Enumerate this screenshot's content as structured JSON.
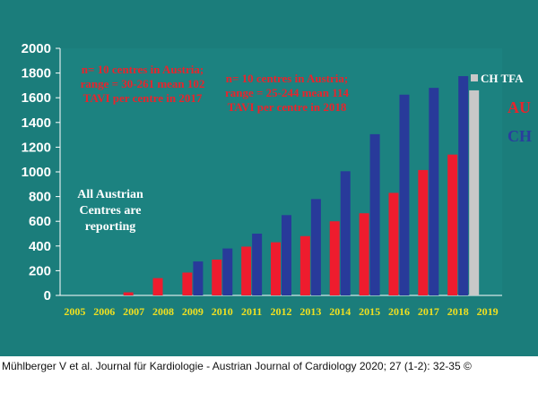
{
  "chart_data": {
    "type": "bar",
    "title": "",
    "xlabel": "",
    "ylabel": "",
    "ylim": [
      0,
      2000
    ],
    "yticks": [
      0,
      200,
      400,
      600,
      800,
      1000,
      1200,
      1400,
      1600,
      1800,
      2000
    ],
    "categories": [
      "2005",
      "2006",
      "2007",
      "2008",
      "2009",
      "2010",
      "2011",
      "2012",
      "2013",
      "2014",
      "2015",
      "2016",
      "2017",
      "2018",
      "2019"
    ],
    "series": [
      {
        "name": "AU",
        "color": "#ee1c2e",
        "values": [
          0,
          0,
          25,
          140,
          185,
          290,
          395,
          430,
          480,
          600,
          665,
          830,
          1015,
          1140,
          null
        ]
      },
      {
        "name": "CH",
        "color": "#283a9a",
        "values": [
          null,
          null,
          null,
          null,
          275,
          380,
          500,
          650,
          780,
          1005,
          1305,
          1625,
          1680,
          1775,
          null
        ]
      },
      {
        "name": "CH TFA",
        "color": "#c8c8c8",
        "values": [
          null,
          null,
          null,
          null,
          null,
          null,
          null,
          null,
          null,
          null,
          null,
          null,
          null,
          1660,
          null
        ]
      }
    ],
    "annotations": [
      "n= 10 centres in Austria; range = 30-261 mean 102 TAVI per centre in 2017",
      "n= 10 centres in Austria; range = 25-244 mean 114 TAVI per centre in 2018",
      "All Austrian Centres are reporting"
    ],
    "legend": {
      "position": "right",
      "entries": [
        "CH TFA",
        "AU",
        "CH"
      ]
    }
  },
  "colors": {
    "background": "#1b7d7b",
    "axis_text": "#ffffff",
    "xtick_text": "#f0e020"
  },
  "caption": "Mühlberger V et al. Journal für Kardiologie - Austrian Journal of Cardiology 2020; 27 (1-2): 32-35 ©"
}
